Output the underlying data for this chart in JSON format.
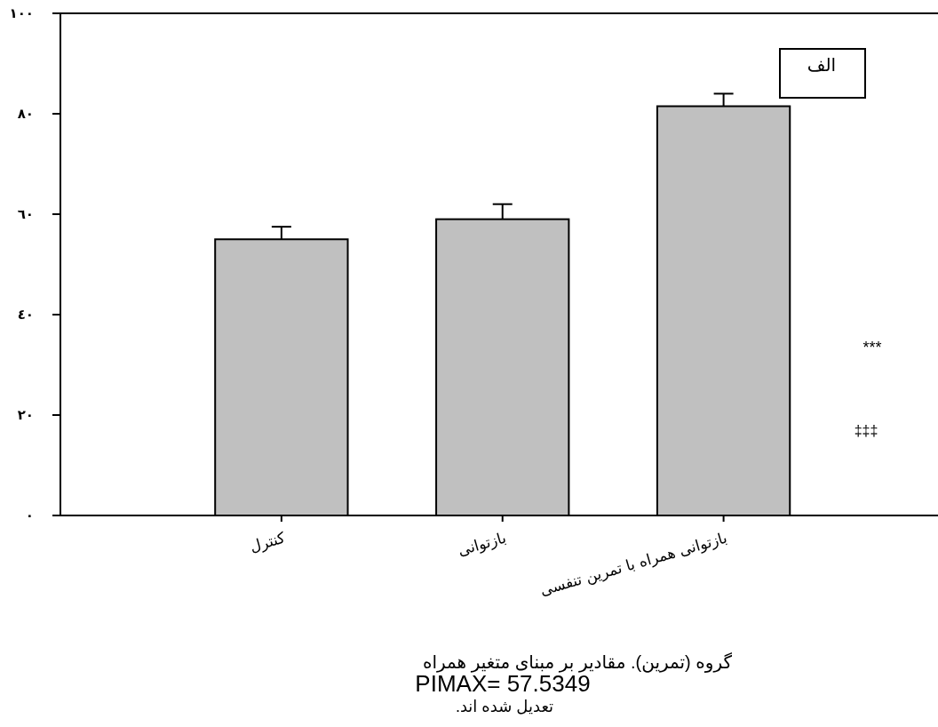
{
  "chart_data": {
    "type": "bar",
    "categories": [
      "کنترل",
      "بازتوانی",
      "بازتوانی همراه با تمرین تنفسی"
    ],
    "values": [
      55,
      59,
      81.5
    ],
    "errors": [
      [
        55,
        57.5
      ],
      [
        59,
        62
      ],
      [
        81.5,
        84
      ]
    ],
    "color": "#c0c0c0",
    "ylim": [
      0,
      100
    ],
    "yticks": [
      {
        "value": 0,
        "label": "٠"
      },
      {
        "value": 20,
        "label": "٢٠"
      },
      {
        "value": 40,
        "label": "٤٠"
      },
      {
        "value": 60,
        "label": "٦٠"
      },
      {
        "value": 80,
        "label": "٨٠"
      },
      {
        "value": 100,
        "label": "١٠٠"
      }
    ],
    "annotations": [
      "الف",
      "***",
      "‡‡‡",
      "گروه (تمرین). مقادیر بر مبنای متغیر همراه",
      "PIMAX= 57.5349",
      "تعدیل شده اند."
    ]
  }
}
